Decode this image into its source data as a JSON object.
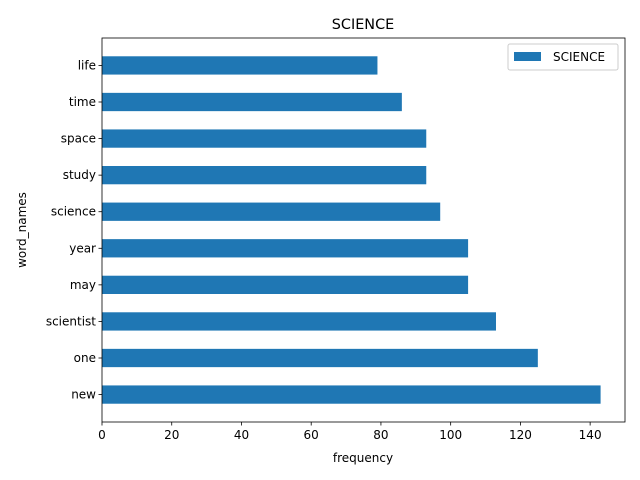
{
  "chart_data": {
    "type": "bar",
    "orientation": "horizontal",
    "title": "SCIENCE",
    "xlabel": "frequency",
    "ylabel": "word_names",
    "categories": [
      "new",
      "one",
      "scientist",
      "may",
      "year",
      "science",
      "study",
      "space",
      "time",
      "life"
    ],
    "series": [
      {
        "name": "SCIENCE",
        "values": [
          143,
          125,
          113,
          105,
          105,
          97,
          93,
          93,
          86,
          79
        ],
        "color": "#1f77b4"
      }
    ],
    "xlim": [
      0,
      150
    ],
    "xticks": [
      0,
      20,
      40,
      60,
      80,
      100,
      120,
      140
    ],
    "grid": false,
    "legend_position": "top-right"
  }
}
